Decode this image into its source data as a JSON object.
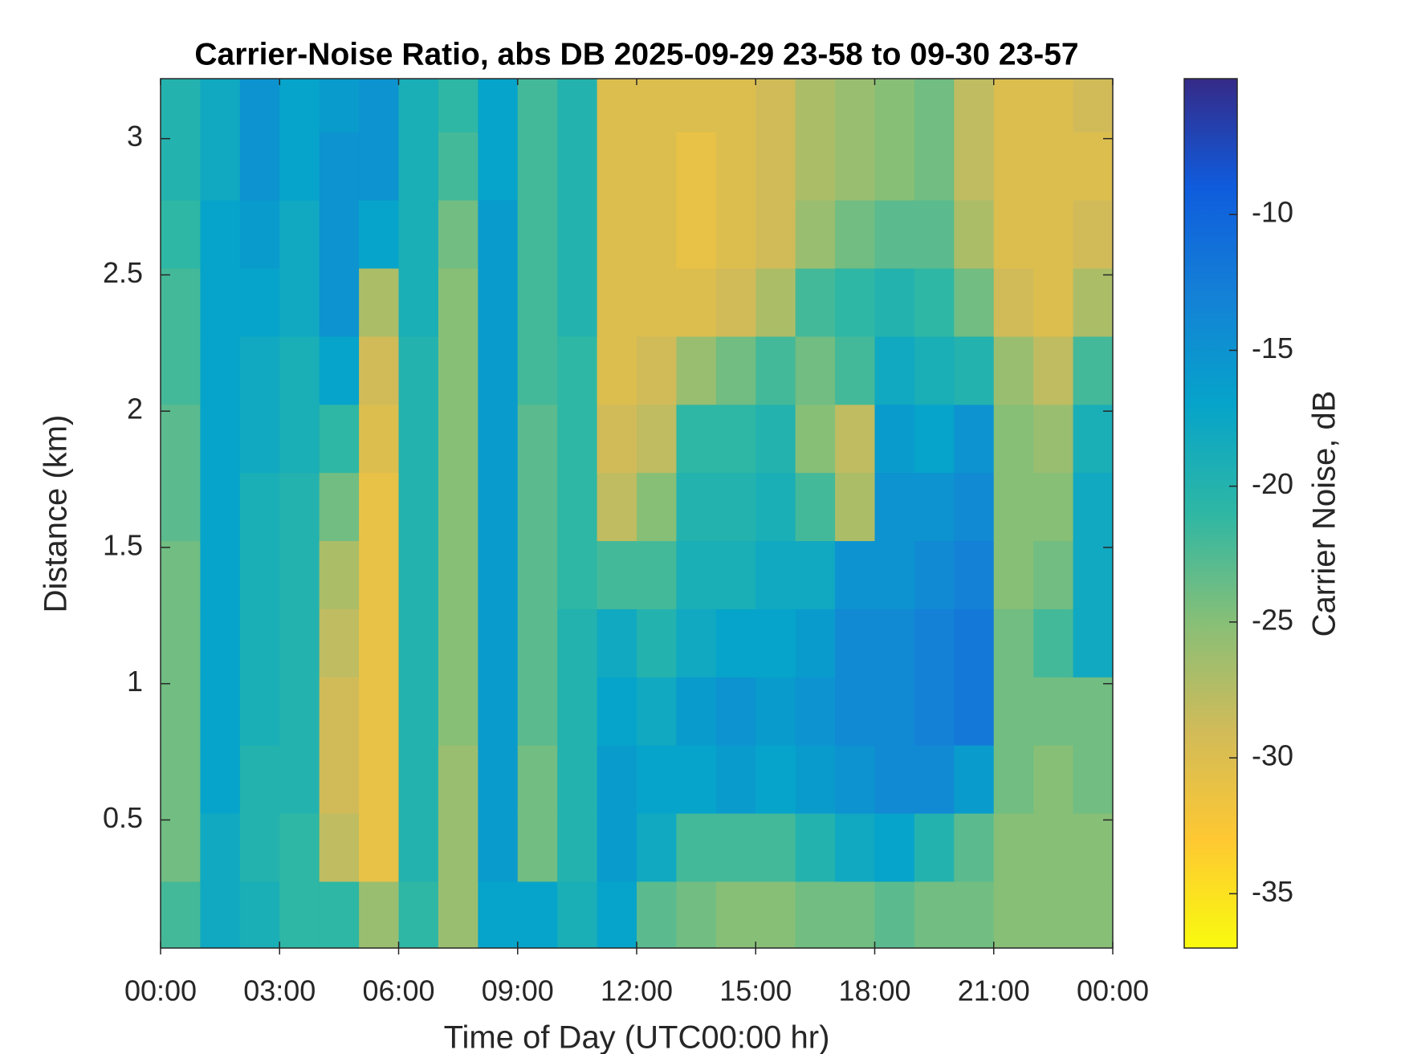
{
  "chart_data": {
    "type": "heatmap",
    "title": "Carrier-Noise Ratio, abs DB 2025-09-29 23-58 to 09-30 23-57",
    "x_label": "Time of Day (UTC00:00 hr)",
    "y_label": "Distance (km)",
    "colorbar_label": "Carrier Noise, dB",
    "x": [
      0.5,
      1.5,
      2.5,
      3.5,
      4.5,
      5.5,
      6.5,
      7.5,
      8.5,
      9.5,
      10.5,
      11.5,
      12.5,
      13.5,
      14.5,
      15.5,
      16.5,
      17.5,
      18.5,
      19.5,
      20.5,
      21.5,
      22.5,
      23.5
    ],
    "y": [
      0.15,
      0.4,
      0.65,
      0.9,
      1.15,
      1.4,
      1.65,
      1.9,
      2.15,
      2.4,
      2.65,
      2.9,
      3.15
    ],
    "z": [
      [
        -22,
        -24,
        -24,
        -24,
        -24,
        -24,
        -23,
        -23,
        -22,
        -22,
        -21,
        -20,
        -20
      ],
      [
        -18,
        -18,
        -17,
        -17,
        -17,
        -17,
        -17,
        -17,
        -17,
        -17,
        -17,
        -18,
        -18
      ],
      [
        -19,
        -20,
        -20,
        -19,
        -19,
        -19,
        -19,
        -18,
        -18,
        -17,
        -16,
        -15,
        -15
      ],
      [
        -21,
        -21,
        -20,
        -20,
        -20,
        -20,
        -20,
        -19,
        -19,
        -18,
        -18,
        -17,
        -17
      ],
      [
        -21,
        -28,
        -29,
        -29,
        -28,
        -27,
        -24,
        -21,
        -17,
        -15,
        -15,
        -15,
        -16
      ],
      [
        -26,
        -31,
        -31,
        -31,
        -31,
        -31,
        -31,
        -30,
        -29,
        -27,
        -17,
        -15,
        -15
      ],
      [
        -21,
        -20,
        -20,
        -20,
        -20,
        -20,
        -20,
        -20,
        -20,
        -19,
        -19,
        -19,
        -19
      ],
      [
        -26,
        -26,
        -26,
        -25,
        -25,
        -25,
        -25,
        -25,
        -25,
        -25,
        -24,
        -22,
        -21
      ],
      [
        -17,
        -16,
        -16,
        -16,
        -16,
        -16,
        -16,
        -16,
        -16,
        -16,
        -16,
        -17,
        -17
      ],
      [
        -17,
        -24,
        -24,
        -23,
        -23,
        -23,
        -23,
        -23,
        -22,
        -22,
        -22,
        -22,
        -22
      ],
      [
        -19,
        -20,
        -20,
        -20,
        -20,
        -21,
        -21,
        -21,
        -21,
        -20,
        -20,
        -20,
        -20
      ],
      [
        -17,
        -16,
        -16,
        -17,
        -18,
        -22,
        -28,
        -29,
        -30,
        -30,
        -30,
        -30,
        -30
      ],
      [
        -23,
        -18,
        -17,
        -18,
        -20,
        -22,
        -25,
        -28,
        -29,
        -30,
        -30,
        -30,
        -30
      ],
      [
        -24,
        -22,
        -17,
        -16,
        -18,
        -19,
        -20,
        -21,
        -26,
        -30,
        -31,
        -31,
        -30
      ],
      [
        -25,
        -22,
        -16,
        -15,
        -17,
        -19,
        -20,
        -21,
        -24,
        -29,
        -30,
        -30,
        -30
      ],
      [
        -25,
        -22,
        -17,
        -16,
        -17,
        -18,
        -19,
        -20,
        -22,
        -27,
        -29,
        -29,
        -29
      ],
      [
        -24,
        -20,
        -16,
        -15,
        -16,
        -18,
        -22,
        -25,
        -24,
        -22,
        -26,
        -27,
        -27
      ],
      [
        -24,
        -18,
        -15,
        -14,
        -14,
        -15,
        -27,
        -28,
        -22,
        -21,
        -24,
        -26,
        -26
      ],
      [
        -23,
        -17,
        -14,
        -14,
        -14,
        -15,
        -15,
        -16,
        -18,
        -20,
        -23,
        -25,
        -25
      ],
      [
        -24,
        -20,
        -14,
        -13,
        -13,
        -14,
        -15,
        -17,
        -19,
        -21,
        -23,
        -24,
        -24
      ],
      [
        -24,
        -23,
        -16,
        -12,
        -12,
        -13,
        -14,
        -15,
        -20,
        -24,
        -27,
        -28,
        -28
      ],
      [
        -25,
        -25,
        -24,
        -24,
        -24,
        -25,
        -25,
        -25,
        -26,
        -29,
        -30,
        -30,
        -30
      ],
      [
        -25,
        -25,
        -25,
        -24,
        -22,
        -24,
        -25,
        -26,
        -28,
        -30,
        -30,
        -30,
        -30
      ],
      [
        -25,
        -25,
        -24,
        -24,
        -18,
        -18,
        -18,
        -19,
        -22,
        -27,
        -29,
        -30,
        -29
      ]
    ],
    "xlim": [
      0,
      24
    ],
    "xticks": [
      {
        "value": 0,
        "label": "00:00"
      },
      {
        "value": 3,
        "label": "03:00"
      },
      {
        "value": 6,
        "label": "06:00"
      },
      {
        "value": 9,
        "label": "09:00"
      },
      {
        "value": 12,
        "label": "12:00"
      },
      {
        "value": 15,
        "label": "15:00"
      },
      {
        "value": 18,
        "label": "18:00"
      },
      {
        "value": 21,
        "label": "21:00"
      },
      {
        "value": 24,
        "label": "00:00"
      }
    ],
    "ylim": [
      0.03,
      3.22
    ],
    "yticks": [
      0.5,
      1,
      1.5,
      2,
      2.5,
      3
    ],
    "clim": [
      -37,
      -5
    ],
    "cticks": [
      -35,
      -30,
      -25,
      -20,
      -15,
      -10
    ],
    "colormap": [
      "#f9fb0e",
      "#fec832",
      "#d1bb59",
      "#87bf77",
      "#2eb7a4",
      "#06a4ca",
      "#1481d6",
      "#0f5cdd",
      "#352a87"
    ]
  }
}
